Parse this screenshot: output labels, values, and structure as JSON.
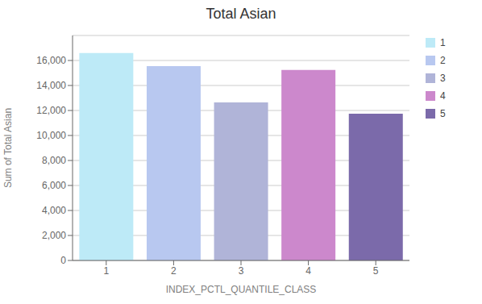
{
  "chart_data": {
    "type": "bar",
    "title": "Total Asian",
    "xlabel": "INDEX_PCTL_QUANTILE_CLASS",
    "ylabel": "Sum of Total Asian",
    "categories": [
      1,
      2,
      3,
      4,
      5
    ],
    "values": [
      16600,
      15550,
      12650,
      15250,
      11750
    ],
    "colors": [
      "#bdeaf7",
      "#b8c8f0",
      "#b0b4d8",
      "#cc88cc",
      "#7b6aaa"
    ],
    "ylim": [
      0,
      18000
    ],
    "yticks": [
      0,
      {
        "value": 2000,
        "label": "2,000"
      },
      {
        "value": 4000,
        "label": "4,000"
      },
      {
        "value": 6000,
        "label": "6,000"
      },
      {
        "value": 8000,
        "label": "8,000"
      },
      {
        "value": 10000,
        "label": "10,000"
      },
      {
        "value": 12000,
        "label": "12,000"
      },
      {
        "value": 14000,
        "label": "14,000"
      },
      {
        "value": 16000,
        "label": "16,000"
      }
    ],
    "grid": true,
    "legend": "right"
  }
}
